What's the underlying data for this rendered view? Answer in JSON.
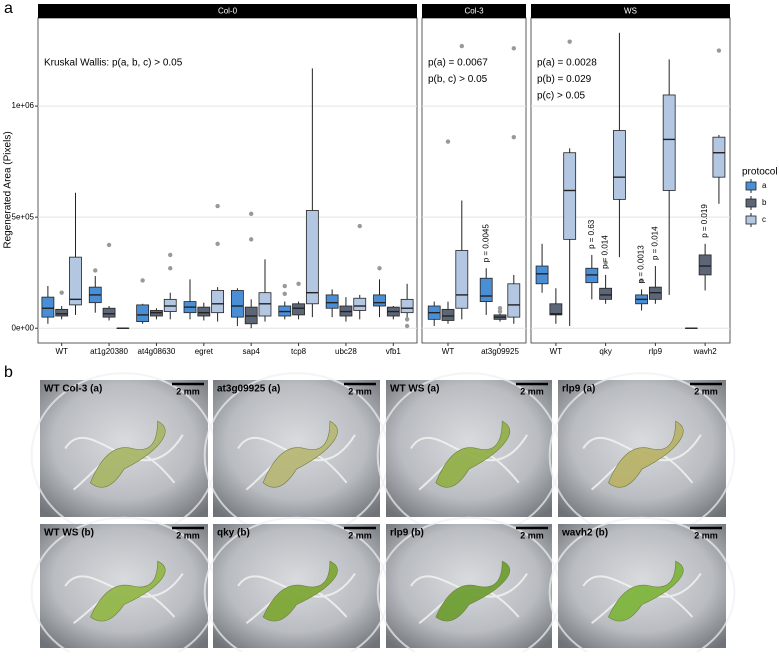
{
  "chart_data": {
    "type": "box",
    "panel_label": "a",
    "ylabel": "Regenerated Area (Pixels)",
    "ylim": [
      -66500,
      1396500
    ],
    "yticks": [
      {
        "value": 0,
        "label": "0e+00"
      },
      {
        "value": 500000,
        "label": "5e+05"
      },
      {
        "value": 1000000,
        "label": "1e+06"
      }
    ],
    "grid": true,
    "legend_title": "protocol",
    "legend_position": "right",
    "series": [
      {
        "name": "a",
        "color": "#4a8fd6"
      },
      {
        "name": "b",
        "color": "#5d6677"
      },
      {
        "name": "c",
        "color": "#b3c7e3"
      }
    ],
    "facets": [
      {
        "title": "Col-0",
        "notes": [
          "Kruskal Wallis: p(a, b, c) > 0.05"
        ],
        "categories": [
          "WT",
          "at1g20380",
          "at4g08630",
          "egret",
          "sap4",
          "tcp8",
          "ubc28",
          "vfb1"
        ],
        "boxes": [
          [
            {
              "whisker_low": 20000,
              "q1": 50000,
              "median": 90000,
              "q3": 140000,
              "whisker_high": 190000,
              "outliers": []
            },
            {
              "whisker_low": 40000,
              "q1": 55000,
              "median": 65000,
              "q3": 85000,
              "whisker_high": 100000,
              "outliers": [
                160000
              ]
            },
            {
              "whisker_low": 60000,
              "q1": 105000,
              "median": 130000,
              "q3": 320000,
              "whisker_high": 610000,
              "outliers": []
            }
          ],
          [
            {
              "whisker_low": 70000,
              "q1": 115000,
              "median": 150000,
              "q3": 185000,
              "whisker_high": 235000,
              "outliers": [
                260000
              ]
            },
            {
              "whisker_low": 35000,
              "q1": 50000,
              "median": 65000,
              "q3": 90000,
              "whisker_high": 100000,
              "outliers": [
                375000
              ]
            },
            {
              "whisker_low": 0,
              "q1": 0,
              "median": 0,
              "q3": 0,
              "whisker_high": 0,
              "outliers": []
            }
          ],
          [
            {
              "whisker_low": 20000,
              "q1": 30000,
              "median": 60000,
              "q3": 105000,
              "whisker_high": 110000,
              "outliers": [
                215000
              ]
            },
            {
              "whisker_low": 40000,
              "q1": 55000,
              "median": 70000,
              "q3": 80000,
              "whisker_high": 90000,
              "outliers": []
            },
            {
              "whisker_low": 40000,
              "q1": 75000,
              "median": 100000,
              "q3": 130000,
              "whisker_high": 160000,
              "outliers": [
                270000,
                330000
              ]
            }
          ],
          [
            {
              "whisker_low": 40000,
              "q1": 70000,
              "median": 95000,
              "q3": 120000,
              "whisker_high": 220000,
              "outliers": []
            },
            {
              "whisker_low": 35000,
              "q1": 55000,
              "median": 70000,
              "q3": 95000,
              "whisker_high": 115000,
              "outliers": []
            },
            {
              "whisker_low": 30000,
              "q1": 70000,
              "median": 110000,
              "q3": 170000,
              "whisker_high": 185000,
              "outliers": [
                380000,
                550000
              ]
            }
          ],
          [
            {
              "whisker_low": 10000,
              "q1": 50000,
              "median": 100000,
              "q3": 170000,
              "whisker_high": 180000,
              "outliers": []
            },
            {
              "whisker_low": 0,
              "q1": 20000,
              "median": 55000,
              "q3": 95000,
              "whisker_high": 130000,
              "outliers": [
                400000,
                515000
              ]
            },
            {
              "whisker_low": 30000,
              "q1": 55000,
              "median": 110000,
              "q3": 160000,
              "whisker_high": 310000,
              "outliers": []
            }
          ],
          [
            {
              "whisker_low": 40000,
              "q1": 55000,
              "median": 75000,
              "q3": 100000,
              "whisker_high": 120000,
              "outliers": [
                155000,
                190000
              ]
            },
            {
              "whisker_low": 40000,
              "q1": 60000,
              "median": 90000,
              "q3": 110000,
              "whisker_high": 120000,
              "outliers": [
                200000
              ]
            },
            {
              "whisker_low": 50000,
              "q1": 110000,
              "median": 160000,
              "q3": 530000,
              "whisker_high": 1170000,
              "outliers": []
            }
          ],
          [
            {
              "whisker_low": 50000,
              "q1": 90000,
              "median": 115000,
              "q3": 150000,
              "whisker_high": 175000,
              "outliers": []
            },
            {
              "whisker_low": 30000,
              "q1": 55000,
              "median": 75000,
              "q3": 100000,
              "whisker_high": 140000,
              "outliers": []
            },
            {
              "whisker_low": 40000,
              "q1": 80000,
              "median": 100000,
              "q3": 135000,
              "whisker_high": 150000,
              "outliers": [
                460000
              ]
            }
          ],
          [
            {
              "whisker_low": 50000,
              "q1": 100000,
              "median": 115000,
              "q3": 150000,
              "whisker_high": 220000,
              "outliers": [
                270000
              ]
            },
            {
              "whisker_low": 40000,
              "q1": 55000,
              "median": 75000,
              "q3": 95000,
              "whisker_high": 100000,
              "outliers": []
            },
            {
              "whisker_low": 30000,
              "q1": 70000,
              "median": 90000,
              "q3": 130000,
              "whisker_high": 200000,
              "outliers": [
                10000,
                40000
              ]
            }
          ]
        ]
      },
      {
        "title": "Col-3",
        "notes": [
          "p(a) = 0.0067",
          "p(b, c) > 0.05"
        ],
        "categories": [
          "WT",
          "at3g09925"
        ],
        "boxes": [
          [
            {
              "whisker_low": 10000,
              "q1": 40000,
              "median": 70000,
              "q3": 100000,
              "whisker_high": 120000,
              "outliers": []
            },
            {
              "whisker_low": 20000,
              "q1": 35000,
              "median": 55000,
              "q3": 85000,
              "whisker_high": 120000,
              "outliers": [
                840000
              ]
            },
            {
              "whisker_low": 40000,
              "q1": 90000,
              "median": 150000,
              "q3": 350000,
              "whisker_high": 575000,
              "outliers": [
                1270000
              ]
            }
          ],
          [
            {
              "whisker_low": 60000,
              "q1": 120000,
              "median": 145000,
              "q3": 225000,
              "whisker_high": 270000,
              "outliers": [],
              "label": "p = 0.0045"
            },
            {
              "whisker_low": 30000,
              "q1": 40000,
              "median": 50000,
              "q3": 60000,
              "whisker_high": 65000,
              "outliers": [
                75000,
                90000
              ]
            },
            {
              "whisker_low": 20000,
              "q1": 50000,
              "median": 105000,
              "q3": 200000,
              "whisker_high": 240000,
              "outliers": [
                860000,
                1260000
              ]
            }
          ]
        ]
      },
      {
        "title": "WS",
        "notes": [
          "p(a) = 0.0028",
          "p(b) = 0.029",
          "p(c) > 0.05"
        ],
        "categories": [
          "WT",
          "qky",
          "rlp9",
          "wavh2"
        ],
        "boxes": [
          [
            {
              "whisker_low": 160000,
              "q1": 200000,
              "median": 245000,
              "q3": 280000,
              "whisker_high": 380000,
              "outliers": []
            },
            {
              "whisker_low": 20000,
              "q1": 60000,
              "median": 65000,
              "q3": 110000,
              "whisker_high": 180000,
              "outliers": []
            },
            {
              "whisker_low": 10000,
              "q1": 400000,
              "median": 620000,
              "q3": 790000,
              "whisker_high": 810000,
              "outliers": [
                1290000
              ]
            }
          ],
          [
            {
              "whisker_low": 130000,
              "q1": 205000,
              "median": 240000,
              "q3": 270000,
              "whisker_high": 330000,
              "outliers": [],
              "label": "p = 0.63"
            },
            {
              "whisker_low": 110000,
              "q1": 130000,
              "median": 150000,
              "q3": 180000,
              "whisker_high": 240000,
              "outliers": [
                295000
              ],
              "label": "p = 0.014"
            },
            {
              "whisker_low": 320000,
              "q1": 580000,
              "median": 680000,
              "q3": 890000,
              "whisker_high": 1330000,
              "outliers": []
            }
          ],
          [
            {
              "whisker_low": 80000,
              "q1": 110000,
              "median": 130000,
              "q3": 150000,
              "whisker_high": 175000,
              "outliers": [
                215000
              ],
              "label": "p = 0.0013"
            },
            {
              "whisker_low": 110000,
              "q1": 130000,
              "median": 160000,
              "q3": 185000,
              "whisker_high": 280000,
              "outliers": [],
              "label": "p = 0.014"
            },
            {
              "whisker_low": 150000,
              "q1": 620000,
              "median": 850000,
              "q3": 1050000,
              "whisker_high": 1210000,
              "outliers": []
            }
          ],
          [
            {
              "whisker_low": 0,
              "q1": 0,
              "median": 0,
              "q3": 0,
              "whisker_high": 0,
              "outliers": []
            },
            {
              "whisker_low": 170000,
              "q1": 240000,
              "median": 280000,
              "q3": 330000,
              "whisker_high": 380000,
              "outliers": [],
              "label": "p = 0.019"
            },
            {
              "whisker_low": 560000,
              "q1": 680000,
              "median": 790000,
              "q3": 860000,
              "whisker_high": 870000,
              "outliers": [
                1250000
              ]
            }
          ]
        ]
      }
    ]
  },
  "panel_b": {
    "label": "b",
    "photos": [
      {
        "title": "WT Col-3 (a)",
        "scale": "2 mm"
      },
      {
        "title": "at3g09925 (a)",
        "scale": "2 mm"
      },
      {
        "title": "WT WS (a)",
        "scale": "2 mm"
      },
      {
        "title": "rlp9 (a)",
        "scale": "2 mm"
      },
      {
        "title": "WT WS (b)",
        "scale": "2 mm"
      },
      {
        "title": "qky (b)",
        "scale": "2 mm"
      },
      {
        "title": "rlp9 (b)",
        "scale": "2 mm"
      },
      {
        "title": "wavh2 (b)",
        "scale": "2 mm"
      }
    ]
  }
}
